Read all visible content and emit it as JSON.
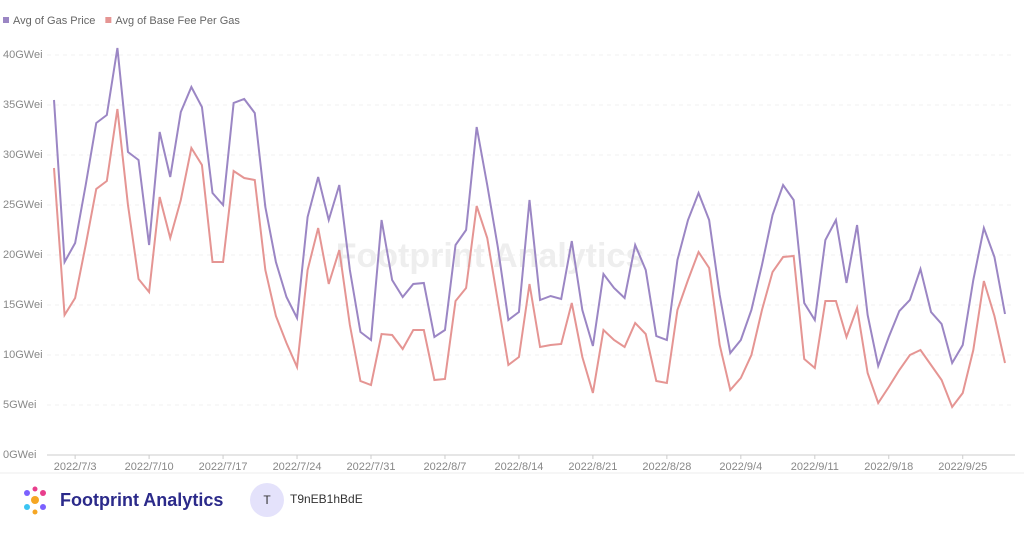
{
  "chart_data": {
    "type": "line",
    "watermark": "Footprint Analytics",
    "categories": [
      null,
      null,
      "2022/7/3",
      null,
      null,
      null,
      null,
      null,
      null,
      "2022/7/10",
      null,
      null,
      null,
      null,
      null,
      null,
      "2022/7/17",
      null,
      null,
      null,
      null,
      null,
      null,
      "2022/7/24",
      null,
      null,
      null,
      null,
      null,
      null,
      "2022/7/31",
      null,
      null,
      null,
      null,
      null,
      null,
      "2022/8/7",
      null,
      null,
      null,
      null,
      null,
      null,
      "2022/8/14",
      null,
      null,
      null,
      null,
      null,
      null,
      "2022/8/21",
      null,
      null,
      null,
      null,
      null,
      null,
      "2022/8/28",
      null,
      null,
      null,
      null,
      null,
      null,
      "2022/9/4",
      null,
      null,
      null,
      null,
      null,
      null,
      "2022/9/11",
      null,
      null,
      null,
      null,
      null,
      null,
      "2022/9/18",
      null,
      null,
      null,
      null,
      null,
      null,
      "2022/9/25",
      null,
      null,
      null,
      null
    ],
    "series": [
      {
        "name": "Avg of Gas Price",
        "color": "#9b86c4",
        "values": [
          35.5,
          19.3,
          21.2,
          27,
          33.2,
          34,
          40.7,
          30.3,
          29.5,
          21,
          32.3,
          27.8,
          34.3,
          36.8,
          34.8,
          26.2,
          25,
          35.2,
          35.6,
          34.2,
          24.8,
          19.3,
          15.8,
          13.7,
          23.8,
          27.8,
          23.5,
          27,
          18.5,
          12.3,
          11.5,
          23.5,
          17.5,
          15.8,
          17.1,
          17.2,
          11.8,
          12.5,
          21,
          22.5,
          32.8,
          27,
          20.8,
          13.5,
          14.3,
          25.5,
          15.5,
          15.9,
          15.6,
          21.4,
          14.5,
          10.9,
          18.1,
          16.7,
          15.7,
          21,
          18.5,
          11.9,
          11.5,
          19.5,
          23.5,
          26.2,
          23.5,
          16,
          10.2,
          11.5,
          14.5,
          19,
          24,
          27,
          25.5,
          15.2,
          13.5,
          21.5,
          23.5,
          17.2,
          23,
          14,
          8.9,
          11.8,
          14.4,
          15.5,
          18.6,
          14.3,
          13.1,
          9.2,
          11,
          17.5,
          22.7,
          19.8,
          14.1
        ]
      },
      {
        "name": "Avg of Base Fee Per Gas",
        "color": "#e59593",
        "values": [
          28.7,
          14,
          15.7,
          21,
          26.6,
          27.4,
          34.6,
          25,
          17.6,
          16.3,
          25.8,
          21.7,
          25.5,
          30.7,
          29,
          19.3,
          19.3,
          28.4,
          27.7,
          27.5,
          18.5,
          13.9,
          11.2,
          8.8,
          18.5,
          22.7,
          17.1,
          20.5,
          13,
          7.4,
          7,
          12.1,
          12,
          10.6,
          12.5,
          12.5,
          7.5,
          7.6,
          15.4,
          16.7,
          24.9,
          21.7,
          15.4,
          9,
          9.8,
          17.1,
          10.8,
          11,
          11.1,
          15.2,
          9.8,
          6.2,
          12.5,
          11.5,
          10.8,
          13.2,
          12.1,
          7.4,
          7.2,
          14.5,
          17.5,
          20.3,
          18.7,
          11,
          6.5,
          7.7,
          10,
          14.5,
          18.3,
          19.8,
          19.9,
          9.6,
          8.7,
          15.4,
          15.4,
          11.8,
          14.7,
          8.2,
          5.2,
          6.8,
          8.5,
          10,
          10.5,
          9,
          7.5,
          4.8,
          6.2,
          10.5,
          17.4,
          13.9,
          9.2
        ]
      }
    ],
    "ylim": [
      0,
      40
    ],
    "yticks": [
      {
        "value": 0,
        "label": "0GWei"
      },
      {
        "value": 5,
        "label": "5GWei"
      },
      {
        "value": 10,
        "label": "10GWei"
      },
      {
        "value": 15,
        "label": "15GWei"
      },
      {
        "value": 20,
        "label": "20GWei"
      },
      {
        "value": 25,
        "label": "25GWei"
      },
      {
        "value": 30,
        "label": "30GWei"
      },
      {
        "value": 35,
        "label": "35GWei"
      },
      {
        "value": 40,
        "label": "40GWei"
      }
    ],
    "grid": true,
    "legend": "top-left"
  },
  "footer": {
    "brand": "Footprint Analytics",
    "avatar": "T",
    "user": "T9nEB1hBdE"
  }
}
